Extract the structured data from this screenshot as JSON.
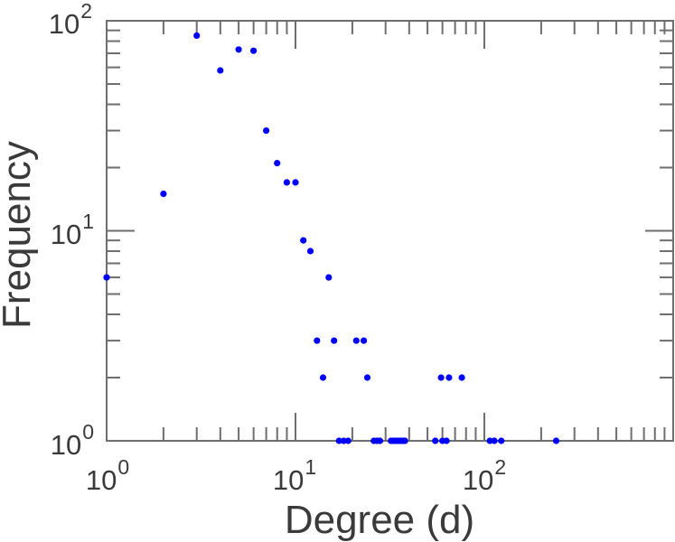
{
  "chart_data": {
    "type": "scatter",
    "title": "",
    "xlabel": "Degree (d)",
    "ylabel": "Frequency",
    "x_scale": "log",
    "y_scale": "log",
    "xlim": [
      1,
      1000
    ],
    "ylim": [
      1,
      100
    ],
    "grid": false,
    "legend": null,
    "axis_color": "#6e6e6e",
    "text_color": "#3a3a3a",
    "marker": {
      "shape": "circle",
      "color": "#0000f8",
      "radius_px": 3.6
    },
    "x_ticks": [
      {
        "value": 1,
        "base": "10",
        "exp": "0"
      },
      {
        "value": 10,
        "base": "10",
        "exp": "1"
      },
      {
        "value": 100,
        "base": "10",
        "exp": "2"
      }
    ],
    "y_ticks": [
      {
        "value": 1,
        "base": "10",
        "exp": "0"
      },
      {
        "value": 10,
        "base": "10",
        "exp": "1"
      },
      {
        "value": 100,
        "base": "10",
        "exp": "2"
      }
    ],
    "points": [
      [
        1,
        6
      ],
      [
        2,
        15
      ],
      [
        3,
        85
      ],
      [
        4,
        58
      ],
      [
        5,
        73
      ],
      [
        6,
        72
      ],
      [
        7,
        30
      ],
      [
        8,
        21
      ],
      [
        9,
        17
      ],
      [
        10,
        17
      ],
      [
        11,
        9
      ],
      [
        12,
        8
      ],
      [
        13,
        3
      ],
      [
        14,
        2
      ],
      [
        15,
        6
      ],
      [
        16,
        3
      ],
      [
        17,
        1
      ],
      [
        18,
        1
      ],
      [
        19,
        1
      ],
      [
        21,
        3
      ],
      [
        23,
        3
      ],
      [
        24,
        2
      ],
      [
        26,
        1
      ],
      [
        27,
        1
      ],
      [
        28,
        1
      ],
      [
        32,
        1
      ],
      [
        33,
        1
      ],
      [
        34,
        1
      ],
      [
        35,
        1
      ],
      [
        36,
        1
      ],
      [
        37,
        1
      ],
      [
        38,
        1
      ],
      [
        55,
        1
      ],
      [
        59,
        2
      ],
      [
        60,
        1
      ],
      [
        63,
        1
      ],
      [
        65,
        2
      ],
      [
        76,
        2
      ],
      [
        107,
        1
      ],
      [
        113,
        1
      ],
      [
        123,
        1
      ],
      [
        240,
        1
      ]
    ]
  }
}
